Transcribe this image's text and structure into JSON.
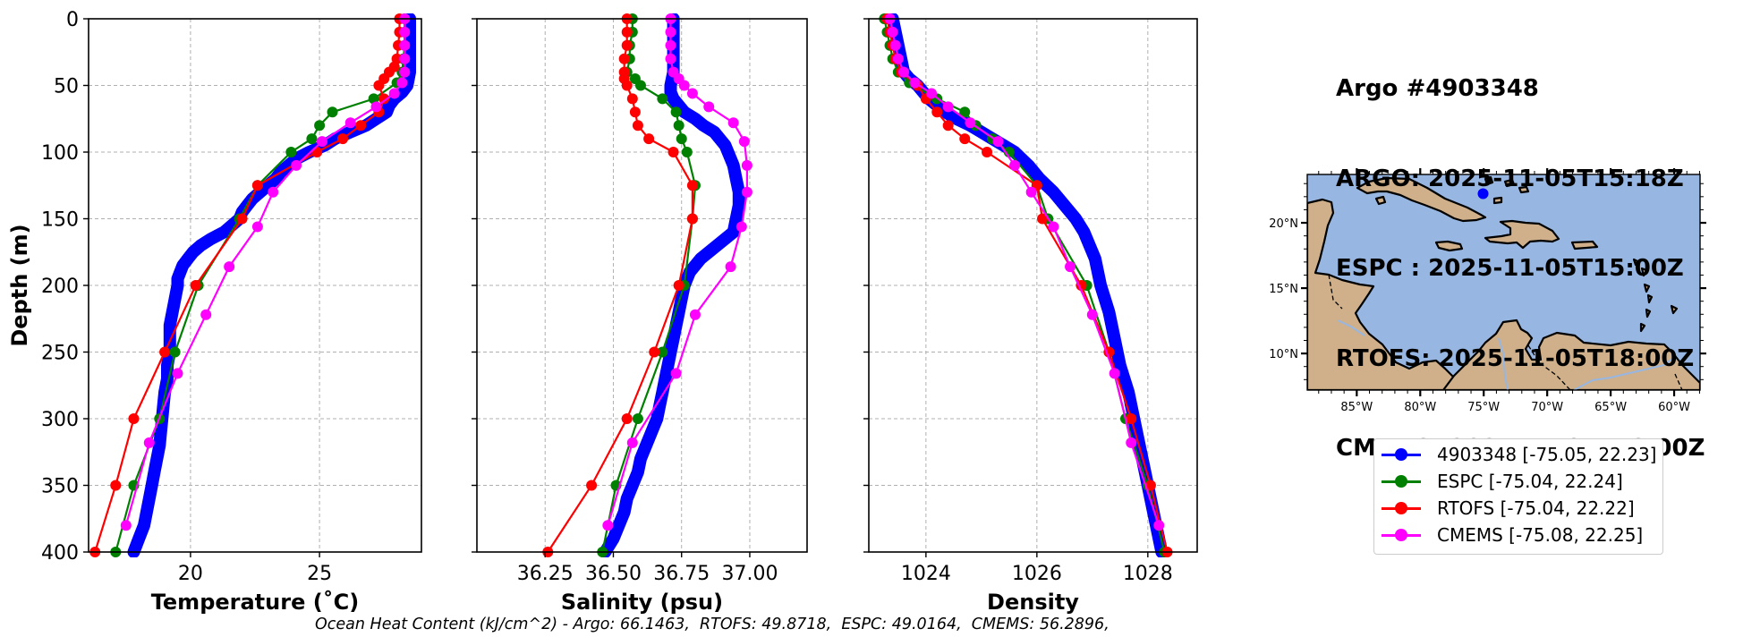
{
  "header": {
    "lines": [
      "Argo #4903348",
      "ARGO: 2025-11-05T15:18Z",
      "ESPC : 2025-11-05T15:00Z",
      "RTOFS: 2025-11-05T18:00Z",
      "CMEMS: 2025-11-05T18:00Z"
    ]
  },
  "footer": {
    "text": "Ocean Heat Content (kJ/cm^2) - Argo: 66.1463,  RTOFS: 49.8718,  ESPC: 49.0164,  CMEMS: 56.2896,"
  },
  "legend": {
    "entries": [
      {
        "label": "4903348 [-75.05, 22.23]",
        "color": "#0000ff"
      },
      {
        "label": "ESPC [-75.04, 22.24]",
        "color": "#008000"
      },
      {
        "label": "RTOFS [-75.04, 22.22]",
        "color": "#ff0000"
      },
      {
        "label": "CMEMS [-75.08, 22.25]",
        "color": "#ff00ff"
      }
    ]
  },
  "chart_data": [
    {
      "type": "line",
      "id": "temperature",
      "xlabel": "Temperature (˚C)",
      "ylabel": "Depth (m)",
      "xlim": [
        16.05,
        28.95
      ],
      "ylim": [
        400,
        0
      ],
      "xticks": [
        20,
        25
      ],
      "xtick_labels": [
        "20",
        "25"
      ],
      "yticks": [
        0,
        50,
        100,
        150,
        200,
        250,
        300,
        350,
        400
      ],
      "ytick_labels": [
        "0",
        "50",
        "100",
        "150",
        "200",
        "250",
        "300",
        "350",
        "400"
      ],
      "grid": true,
      "series": [
        {
          "name": "Argo 4903348",
          "color": "#0000ff",
          "style": "thick",
          "depth": [
            0,
            10,
            20,
            30,
            40,
            45,
            50,
            55,
            60,
            65,
            70,
            75,
            80,
            85,
            90,
            95,
            100,
            105,
            110,
            115,
            120,
            125,
            130,
            135,
            140,
            145,
            150,
            155,
            160,
            165,
            170,
            175,
            180,
            185,
            190,
            195,
            200,
            210,
            220,
            230,
            240,
            250,
            260,
            270,
            280,
            290,
            300,
            310,
            320,
            330,
            340,
            350,
            360,
            370,
            380,
            390,
            400
          ],
          "values": [
            28.5,
            28.5,
            28.5,
            28.5,
            28.5,
            28.45,
            28.4,
            28.2,
            27.9,
            27.7,
            27.6,
            27.2,
            26.8,
            26.2,
            25.6,
            25.2,
            24.6,
            24.1,
            23.8,
            23.5,
            23.3,
            23.0,
            22.7,
            22.4,
            22.2,
            22.0,
            21.9,
            21.6,
            21.3,
            20.8,
            20.4,
            20.1,
            19.9,
            19.7,
            19.6,
            19.5,
            19.5,
            19.4,
            19.3,
            19.2,
            19.2,
            19.2,
            19.1,
            19.1,
            19.0,
            18.95,
            18.9,
            18.85,
            18.8,
            18.7,
            18.6,
            18.5,
            18.4,
            18.3,
            18.2,
            18.0,
            17.8
          ]
        },
        {
          "name": "ESPC",
          "color": "#008000",
          "style": "marker",
          "depth": [
            0,
            10,
            20,
            30,
            40,
            48,
            60,
            70,
            80,
            90,
            100,
            125,
            150,
            200,
            250,
            300,
            350,
            400
          ],
          "values": [
            28.3,
            28.3,
            28.3,
            28.25,
            28.2,
            28.0,
            27.1,
            25.5,
            25.0,
            24.7,
            23.9,
            22.6,
            21.9,
            20.3,
            19.4,
            18.8,
            17.8,
            17.1
          ]
        },
        {
          "name": "RTOFS",
          "color": "#ff0000",
          "style": "marker",
          "depth": [
            0,
            10,
            20,
            30,
            36,
            40,
            45,
            50,
            60,
            70,
            80,
            90,
            100,
            125,
            150,
            200,
            250,
            300,
            350,
            400
          ],
          "values": [
            28.1,
            28.1,
            28.05,
            28.0,
            27.9,
            27.7,
            27.5,
            27.3,
            27.5,
            27.3,
            26.6,
            25.9,
            24.9,
            22.6,
            22.0,
            20.2,
            19.0,
            17.8,
            17.1,
            16.3
          ]
        },
        {
          "name": "CMEMS",
          "color": "#ff00ff",
          "style": "marker",
          "depth": [
            0,
            10,
            20,
            30,
            40,
            48,
            56,
            66,
            78,
            92,
            110,
            130,
            156,
            186,
            222,
            266,
            318,
            380
          ],
          "values": [
            28.3,
            28.3,
            28.3,
            28.3,
            28.3,
            28.2,
            27.9,
            27.2,
            26.2,
            25.1,
            24.1,
            23.2,
            22.6,
            21.5,
            20.6,
            19.5,
            18.4,
            17.5
          ]
        }
      ]
    },
    {
      "type": "line",
      "id": "salinity",
      "xlabel": "Salinity (psu)",
      "ylabel": "",
      "xlim": [
        36.0,
        37.21
      ],
      "ylim": [
        400,
        0
      ],
      "xticks": [
        36.25,
        36.5,
        36.75,
        37.0
      ],
      "xtick_labels": [
        "36.25",
        "36.50",
        "36.75",
        "37.00"
      ],
      "yticks": [
        0,
        50,
        100,
        150,
        200,
        250,
        300,
        350,
        400
      ],
      "grid": true,
      "series": [
        {
          "name": "Argo 4903348",
          "color": "#0000ff",
          "style": "thick",
          "depth": [
            0,
            10,
            20,
            30,
            40,
            50,
            55,
            60,
            65,
            70,
            75,
            80,
            85,
            90,
            95,
            100,
            110,
            120,
            130,
            140,
            150,
            160,
            170,
            180,
            190,
            200,
            210,
            220,
            230,
            240,
            250,
            260,
            270,
            280,
            290,
            300,
            310,
            320,
            330,
            340,
            350,
            360,
            370,
            380,
            390,
            400
          ],
          "values": [
            36.72,
            36.72,
            36.72,
            36.72,
            36.72,
            36.71,
            36.71,
            36.72,
            36.74,
            36.76,
            36.8,
            36.83,
            36.87,
            36.89,
            36.91,
            36.92,
            36.94,
            36.95,
            36.96,
            36.96,
            36.95,
            36.94,
            36.88,
            36.82,
            36.78,
            36.76,
            36.75,
            36.74,
            36.73,
            36.72,
            36.71,
            36.7,
            36.69,
            36.68,
            36.67,
            36.66,
            36.64,
            36.62,
            36.6,
            36.59,
            36.57,
            36.55,
            36.54,
            36.52,
            36.5,
            36.47
          ]
        },
        {
          "name": "ESPC",
          "color": "#008000",
          "style": "marker",
          "depth": [
            0,
            10,
            20,
            30,
            40,
            45,
            50,
            60,
            70,
            80,
            90,
            100,
            125,
            150,
            200,
            250,
            300,
            350,
            400
          ],
          "values": [
            36.57,
            36.57,
            36.56,
            36.56,
            36.55,
            36.58,
            36.6,
            36.68,
            36.73,
            36.74,
            36.75,
            36.77,
            36.8,
            36.79,
            36.76,
            36.68,
            36.59,
            36.51,
            36.46
          ]
        },
        {
          "name": "RTOFS",
          "color": "#ff0000",
          "style": "marker",
          "depth": [
            0,
            10,
            20,
            30,
            40,
            45,
            50,
            60,
            70,
            80,
            90,
            100,
            125,
            150,
            200,
            250,
            300,
            350,
            400
          ],
          "values": [
            36.55,
            36.55,
            36.55,
            36.54,
            36.54,
            36.54,
            36.55,
            36.57,
            36.58,
            36.59,
            36.63,
            36.72,
            36.79,
            36.79,
            36.74,
            36.65,
            36.55,
            36.42,
            36.26
          ]
        },
        {
          "name": "CMEMS",
          "color": "#ff00ff",
          "style": "marker",
          "depth": [
            0,
            10,
            20,
            30,
            40,
            45,
            50,
            56,
            66,
            78,
            92,
            110,
            130,
            156,
            186,
            222,
            266,
            318,
            380
          ],
          "values": [
            36.71,
            36.71,
            36.71,
            36.71,
            36.72,
            36.74,
            36.76,
            36.79,
            36.85,
            36.94,
            36.98,
            36.99,
            36.99,
            36.97,
            36.93,
            36.8,
            36.73,
            36.57,
            36.48
          ]
        }
      ]
    },
    {
      "type": "line",
      "id": "density",
      "xlabel": "Density",
      "ylabel": "",
      "xlim": [
        1022.97,
        1028.89
      ],
      "ylim": [
        400,
        0
      ],
      "xticks": [
        1024,
        1026,
        1028
      ],
      "xtick_labels": [
        "1024",
        "1026",
        "1028"
      ],
      "yticks": [
        0,
        50,
        100,
        150,
        200,
        250,
        300,
        350,
        400
      ],
      "grid": true,
      "series": [
        {
          "name": "Argo 4903348",
          "color": "#0000ff",
          "style": "thick",
          "depth": [
            0,
            10,
            20,
            30,
            40,
            45,
            50,
            55,
            60,
            65,
            70,
            75,
            80,
            85,
            90,
            95,
            100,
            110,
            120,
            130,
            140,
            150,
            160,
            170,
            180,
            190,
            200,
            220,
            240,
            260,
            280,
            300,
            320,
            340,
            360,
            380,
            400
          ],
          "values": [
            1023.4,
            1023.45,
            1023.5,
            1023.55,
            1023.6,
            1023.7,
            1023.85,
            1023.95,
            1024.05,
            1024.2,
            1024.35,
            1024.55,
            1024.8,
            1025.0,
            1025.2,
            1025.4,
            1025.6,
            1025.85,
            1026.05,
            1026.3,
            1026.5,
            1026.7,
            1026.85,
            1026.95,
            1027.05,
            1027.1,
            1027.15,
            1027.3,
            1027.4,
            1027.5,
            1027.65,
            1027.75,
            1027.85,
            1027.95,
            1028.05,
            1028.15,
            1028.25
          ]
        },
        {
          "name": "ESPC",
          "color": "#008000",
          "style": "marker",
          "depth": [
            0,
            10,
            20,
            30,
            40,
            48,
            60,
            70,
            80,
            90,
            100,
            125,
            150,
            200,
            250,
            300,
            350,
            400
          ],
          "values": [
            1023.25,
            1023.3,
            1023.35,
            1023.4,
            1023.5,
            1023.7,
            1024.2,
            1024.7,
            1024.9,
            1025.2,
            1025.5,
            1026.0,
            1026.2,
            1026.9,
            1027.3,
            1027.6,
            1028.0,
            1028.3
          ]
        },
        {
          "name": "RTOFS",
          "color": "#ff0000",
          "style": "marker",
          "depth": [
            0,
            10,
            20,
            30,
            40,
            50,
            60,
            70,
            80,
            90,
            100,
            125,
            150,
            200,
            250,
            300,
            350,
            400
          ],
          "values": [
            1023.3,
            1023.35,
            1023.4,
            1023.45,
            1023.55,
            1023.85,
            1024.0,
            1024.2,
            1024.4,
            1024.7,
            1025.1,
            1026.0,
            1026.1,
            1026.8,
            1027.3,
            1027.7,
            1028.05,
            1028.35
          ]
        },
        {
          "name": "CMEMS",
          "color": "#ff00ff",
          "style": "marker",
          "depth": [
            0,
            10,
            20,
            30,
            40,
            48,
            56,
            66,
            78,
            92,
            110,
            130,
            156,
            186,
            222,
            266,
            318,
            380
          ],
          "values": [
            1023.35,
            1023.4,
            1023.45,
            1023.5,
            1023.6,
            1023.8,
            1024.1,
            1024.4,
            1024.8,
            1025.3,
            1025.6,
            1025.9,
            1026.3,
            1026.6,
            1027.0,
            1027.4,
            1027.7,
            1028.2
          ]
        }
      ]
    },
    {
      "type": "scatter",
      "id": "location-map",
      "title": "",
      "xlim": [
        -88.9,
        -57.96
      ],
      "ylim": [
        7.2,
        23.7
      ],
      "xticks": [
        -85,
        -80,
        -75,
        -70,
        -65,
        -60
      ],
      "xtick_labels": [
        "85°W",
        "80°W",
        "75°W",
        "70°W",
        "65°W",
        "60°W"
      ],
      "yticks": [
        10,
        15,
        20
      ],
      "ytick_labels": [
        "10°N",
        "15°N",
        "20°N"
      ],
      "ocean_color": "#97b6e1",
      "land_color": "#cfb08a",
      "points": [
        {
          "name": "Argo 4903348",
          "lon": -75.05,
          "lat": 22.23,
          "color": "#0000ff"
        }
      ]
    }
  ]
}
